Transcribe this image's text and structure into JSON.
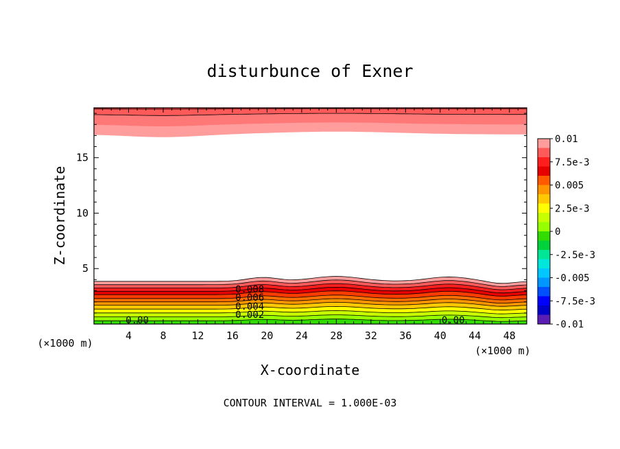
{
  "chart_data": {
    "type": "contour",
    "title": "disturbunce of Exner",
    "xlabel": "X-coordinate",
    "ylabel": "Z-coordinate",
    "x_unit_label_left": "(×1000 m)",
    "x_unit_label_right": "(×1000 m)",
    "footer": "CONTOUR INTERVAL = 1.000E-03",
    "xlim": [
      0,
      50
    ],
    "ylim": [
      0,
      19.5
    ],
    "x_ticks": [
      4,
      8,
      12,
      16,
      20,
      24,
      28,
      32,
      36,
      40,
      44,
      48
    ],
    "x_tick_labels": [
      "4",
      "8",
      "12",
      "16",
      "20",
      "24",
      "28",
      "32",
      "36",
      "40",
      "44",
      "48"
    ],
    "y_ticks": [
      5,
      10,
      15
    ],
    "y_tick_labels": [
      "5",
      "10",
      "15"
    ],
    "contour_interval": 0.001,
    "contour_labels": [
      {
        "text": "0.008",
        "x": 18,
        "y": 2.85
      },
      {
        "text": "0.006",
        "x": 18,
        "y": 2.1
      },
      {
        "text": "0.004",
        "x": 18,
        "y": 1.3
      },
      {
        "text": "0.002",
        "x": 18,
        "y": 0.55
      },
      {
        "text": "0.00",
        "x": 5,
        "y": 0.05
      },
      {
        "text": "0.00",
        "x": 41.5,
        "y": 0.05
      }
    ],
    "colorbar": {
      "labels": [
        "0.01",
        "7.5e-3",
        "0.005",
        "2.5e-3",
        "0",
        "-2.5e-3",
        "-0.005",
        "-7.5e-3",
        "-0.01"
      ],
      "colors": [
        "#ff9c9c",
        "#ff5a5a",
        "#ff1e1e",
        "#e60000",
        "#ff5a00",
        "#ff9600",
        "#ffc800",
        "#ffff00",
        "#c8ff00",
        "#96ff00",
        "#32dc00",
        "#00d23c",
        "#00e696",
        "#00e6dc",
        "#00c8ff",
        "#0096ff",
        "#0050ff",
        "#0000ff",
        "#0000c8",
        "#5a1eb4"
      ]
    }
  }
}
